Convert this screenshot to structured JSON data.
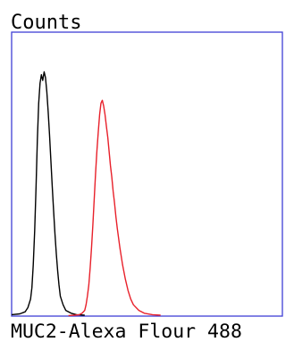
{
  "chart_data": {
    "type": "line",
    "ylabel": "Counts",
    "xlabel": "MUC2-Alexa Flour 488",
    "xlim": [
      0,
      100
    ],
    "ylim": [
      0,
      100
    ],
    "grid": false,
    "legend": "none",
    "frame_color": "#3f3fd6",
    "series": [
      {
        "color": "#000000",
        "points": [
          [
            0,
            0.5
          ],
          [
            3,
            0.8
          ],
          [
            5,
            1.5
          ],
          [
            6,
            3
          ],
          [
            7,
            6
          ],
          [
            7.5,
            10
          ],
          [
            8,
            18
          ],
          [
            8.5,
            30
          ],
          [
            9,
            45
          ],
          [
            9.5,
            62
          ],
          [
            10,
            75
          ],
          [
            10.5,
            82
          ],
          [
            11,
            85
          ],
          [
            11.5,
            83
          ],
          [
            12,
            86
          ],
          [
            12.5,
            84
          ],
          [
            13,
            79
          ],
          [
            13.5,
            72
          ],
          [
            14,
            64
          ],
          [
            14.5,
            55
          ],
          [
            15,
            46
          ],
          [
            15.5,
            37
          ],
          [
            16,
            29
          ],
          [
            16.5,
            22
          ],
          [
            17,
            16
          ],
          [
            17.5,
            11
          ],
          [
            18,
            7
          ],
          [
            19,
            4
          ],
          [
            20,
            2
          ],
          [
            22,
            1
          ],
          [
            24,
            0.5
          ],
          [
            27,
            0.3
          ]
        ]
      },
      {
        "color": "#e8202a",
        "points": [
          [
            21,
            0.2
          ],
          [
            23,
            0.3
          ],
          [
            25,
            0.5
          ],
          [
            26,
            1
          ],
          [
            27,
            2
          ],
          [
            27.5,
            4
          ],
          [
            28,
            7
          ],
          [
            28.5,
            11
          ],
          [
            29,
            17
          ],
          [
            29.5,
            24
          ],
          [
            30,
            32
          ],
          [
            30.5,
            41
          ],
          [
            31,
            50
          ],
          [
            31.5,
            58
          ],
          [
            32,
            65
          ],
          [
            32.5,
            71
          ],
          [
            33,
            75
          ],
          [
            33.5,
            76
          ],
          [
            34,
            74
          ],
          [
            34.5,
            71
          ],
          [
            35,
            67
          ],
          [
            35.5,
            63
          ],
          [
            36,
            58
          ],
          [
            36.5,
            53
          ],
          [
            37,
            49
          ],
          [
            37.5,
            44
          ],
          [
            38,
            40
          ],
          [
            38.5,
            35
          ],
          [
            39,
            31
          ],
          [
            40,
            24
          ],
          [
            41,
            18
          ],
          [
            42,
            13
          ],
          [
            43,
            9
          ],
          [
            44,
            6
          ],
          [
            45,
            4
          ],
          [
            47,
            2
          ],
          [
            49,
            1
          ],
          [
            52,
            0.5
          ],
          [
            55,
            0.3
          ]
        ]
      }
    ]
  }
}
